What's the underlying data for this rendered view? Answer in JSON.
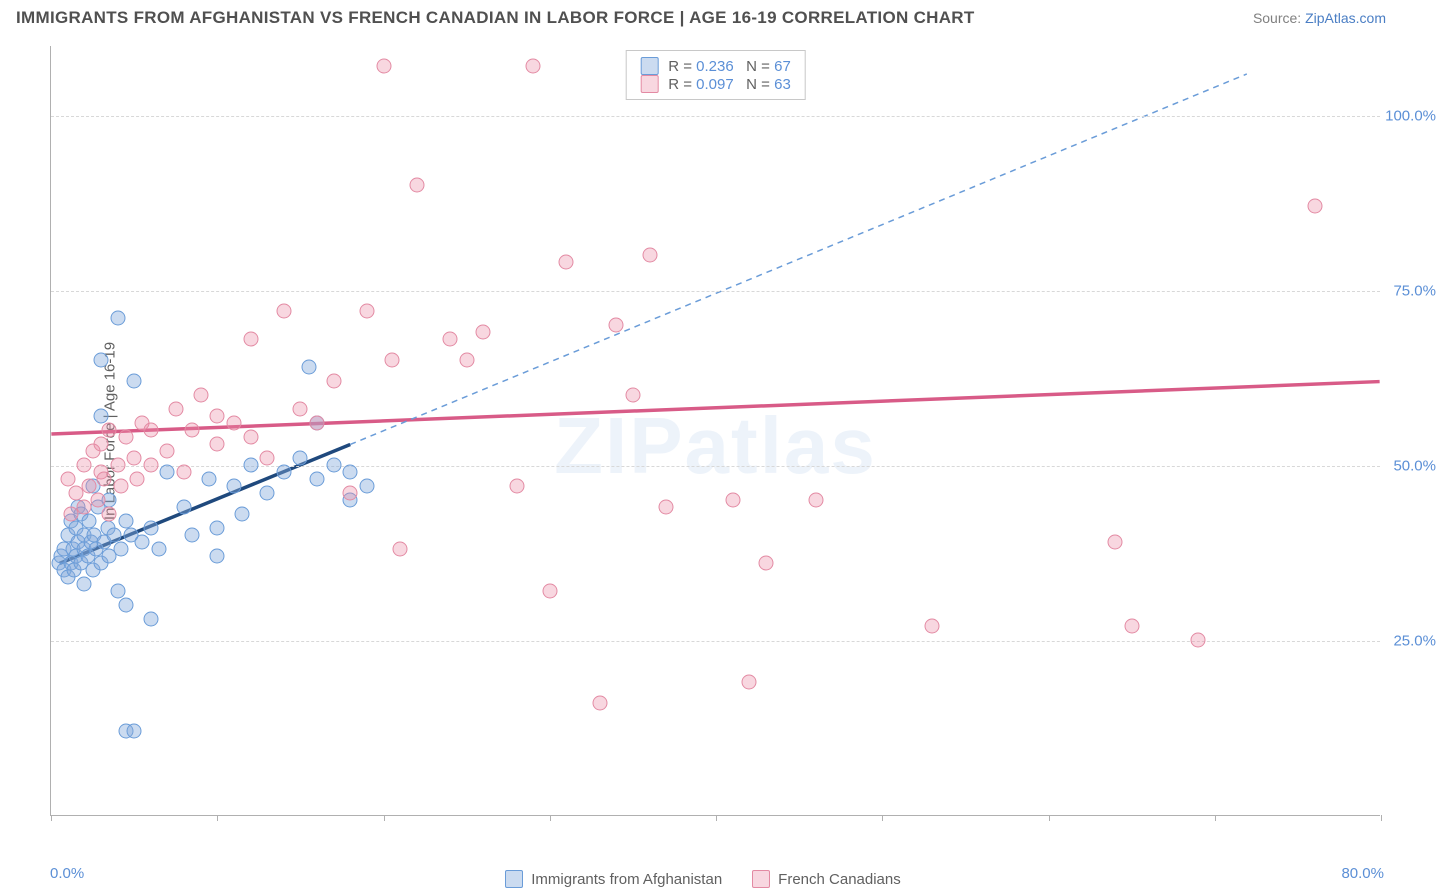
{
  "title": "IMMIGRANTS FROM AFGHANISTAN VS FRENCH CANADIAN IN LABOR FORCE | AGE 16-19 CORRELATION CHART",
  "source_prefix": "Source: ",
  "source_name": "ZipAtlas.com",
  "watermark": "ZIPatlas",
  "chart": {
    "type": "scatter",
    "background_color": "#ffffff",
    "grid_color": "#d8d8d8",
    "axis_color": "#b0b0b0",
    "xlim": [
      0,
      80
    ],
    "ylim": [
      0,
      110
    ],
    "x_ticks": [
      0,
      10,
      20,
      30,
      40,
      50,
      60,
      70,
      80
    ],
    "x_tick_labels": {
      "0": "0.0%",
      "80": "80.0%"
    },
    "y_ticks": [
      25,
      50,
      75,
      100
    ],
    "y_tick_labels": [
      "25.0%",
      "50.0%",
      "75.0%",
      "100.0%"
    ],
    "ylabel": "In Labor Force | Age 16-19",
    "label_fontsize": 15,
    "tick_color": "#5b8fd6",
    "marker_size": 15,
    "series": [
      {
        "id": "afghan",
        "label": "Immigrants from Afghanistan",
        "fill": "rgba(130,170,220,0.42)",
        "stroke": "#6a9cd8",
        "trend_color": "#1f497d",
        "trend_dash_color": "#6a9cd8",
        "r": 0.236,
        "n": 67,
        "trend_solid": {
          "x1": 0.5,
          "y1": 36,
          "x2": 18,
          "y2": 53
        },
        "trend_dash": {
          "x1": 18,
          "y1": 53,
          "x2": 72,
          "y2": 106
        },
        "points": [
          [
            0.5,
            36
          ],
          [
            0.6,
            37
          ],
          [
            0.8,
            35
          ],
          [
            0.8,
            38
          ],
          [
            1.0,
            34
          ],
          [
            1.0,
            40
          ],
          [
            1.2,
            36
          ],
          [
            1.2,
            42
          ],
          [
            1.3,
            38
          ],
          [
            1.4,
            35
          ],
          [
            1.5,
            37
          ],
          [
            1.5,
            41
          ],
          [
            1.6,
            39
          ],
          [
            1.6,
            44
          ],
          [
            1.8,
            36
          ],
          [
            1.8,
            43
          ],
          [
            2.0,
            38
          ],
          [
            2.0,
            40
          ],
          [
            2.0,
            33
          ],
          [
            2.2,
            37
          ],
          [
            2.3,
            42
          ],
          [
            2.4,
            39
          ],
          [
            2.5,
            35
          ],
          [
            2.5,
            47
          ],
          [
            2.6,
            40
          ],
          [
            2.7,
            38
          ],
          [
            2.8,
            44
          ],
          [
            3.0,
            36
          ],
          [
            3.0,
            57
          ],
          [
            3.0,
            65
          ],
          [
            3.2,
            39
          ],
          [
            3.4,
            41
          ],
          [
            3.5,
            37
          ],
          [
            3.5,
            45
          ],
          [
            3.8,
            40
          ],
          [
            4.0,
            32
          ],
          [
            4.0,
            71
          ],
          [
            4.2,
            38
          ],
          [
            4.5,
            42
          ],
          [
            4.5,
            30
          ],
          [
            4.5,
            12
          ],
          [
            4.8,
            40
          ],
          [
            5.0,
            12
          ],
          [
            5.0,
            62
          ],
          [
            5.5,
            39
          ],
          [
            6.0,
            41
          ],
          [
            6.0,
            28
          ],
          [
            6.5,
            38
          ],
          [
            7.0,
            49
          ],
          [
            8.0,
            44
          ],
          [
            8.5,
            40
          ],
          [
            9.5,
            48
          ],
          [
            10.0,
            41
          ],
          [
            10.0,
            37
          ],
          [
            11.0,
            47
          ],
          [
            11.5,
            43
          ],
          [
            12.0,
            50
          ],
          [
            13.0,
            46
          ],
          [
            14.0,
            49
          ],
          [
            15.0,
            51
          ],
          [
            15.5,
            64
          ],
          [
            16.0,
            48
          ],
          [
            16.0,
            56
          ],
          [
            17.0,
            50
          ],
          [
            18.0,
            45
          ],
          [
            18.0,
            49
          ],
          [
            19.0,
            47
          ]
        ]
      },
      {
        "id": "french",
        "label": "French Canadians",
        "fill": "rgba(235,140,165,0.35)",
        "stroke": "#e38aa3",
        "trend_color": "#d85b87",
        "r": 0.097,
        "n": 63,
        "trend_solid": {
          "x1": 0,
          "y1": 54.5,
          "x2": 80,
          "y2": 62
        },
        "points": [
          [
            1,
            48
          ],
          [
            1.2,
            43
          ],
          [
            1.5,
            46
          ],
          [
            2,
            44
          ],
          [
            2,
            50
          ],
          [
            2.3,
            47
          ],
          [
            2.5,
            52
          ],
          [
            2.8,
            45
          ],
          [
            3,
            49
          ],
          [
            3,
            53
          ],
          [
            3.2,
            48
          ],
          [
            3.5,
            55
          ],
          [
            3.5,
            43
          ],
          [
            4,
            50
          ],
          [
            4.2,
            47
          ],
          [
            4.5,
            54
          ],
          [
            5,
            51
          ],
          [
            5.2,
            48
          ],
          [
            5.5,
            56
          ],
          [
            6,
            50
          ],
          [
            6,
            55
          ],
          [
            7,
            52
          ],
          [
            7.5,
            58
          ],
          [
            8,
            49
          ],
          [
            8.5,
            55
          ],
          [
            9,
            60
          ],
          [
            10,
            53
          ],
          [
            10,
            57
          ],
          [
            11,
            56
          ],
          [
            12,
            54
          ],
          [
            12,
            68
          ],
          [
            13,
            51
          ],
          [
            14,
            72
          ],
          [
            15,
            58
          ],
          [
            16,
            56
          ],
          [
            17,
            62
          ],
          [
            18,
            46
          ],
          [
            19,
            72
          ],
          [
            20,
            107
          ],
          [
            20.5,
            65
          ],
          [
            21,
            38
          ],
          [
            22,
            90
          ],
          [
            24,
            68
          ],
          [
            25,
            65
          ],
          [
            26,
            69
          ],
          [
            28,
            47
          ],
          [
            29,
            107
          ],
          [
            30,
            32
          ],
          [
            31,
            79
          ],
          [
            33,
            16
          ],
          [
            34,
            70
          ],
          [
            35,
            60
          ],
          [
            36,
            80
          ],
          [
            37,
            44
          ],
          [
            41,
            45
          ],
          [
            42,
            19
          ],
          [
            43,
            36
          ],
          [
            46,
            45
          ],
          [
            53,
            27
          ],
          [
            64,
            39
          ],
          [
            65,
            27
          ],
          [
            69,
            25
          ],
          [
            76,
            87
          ]
        ]
      }
    ],
    "stats_labels": {
      "r": "R =",
      "n": "N ="
    }
  }
}
